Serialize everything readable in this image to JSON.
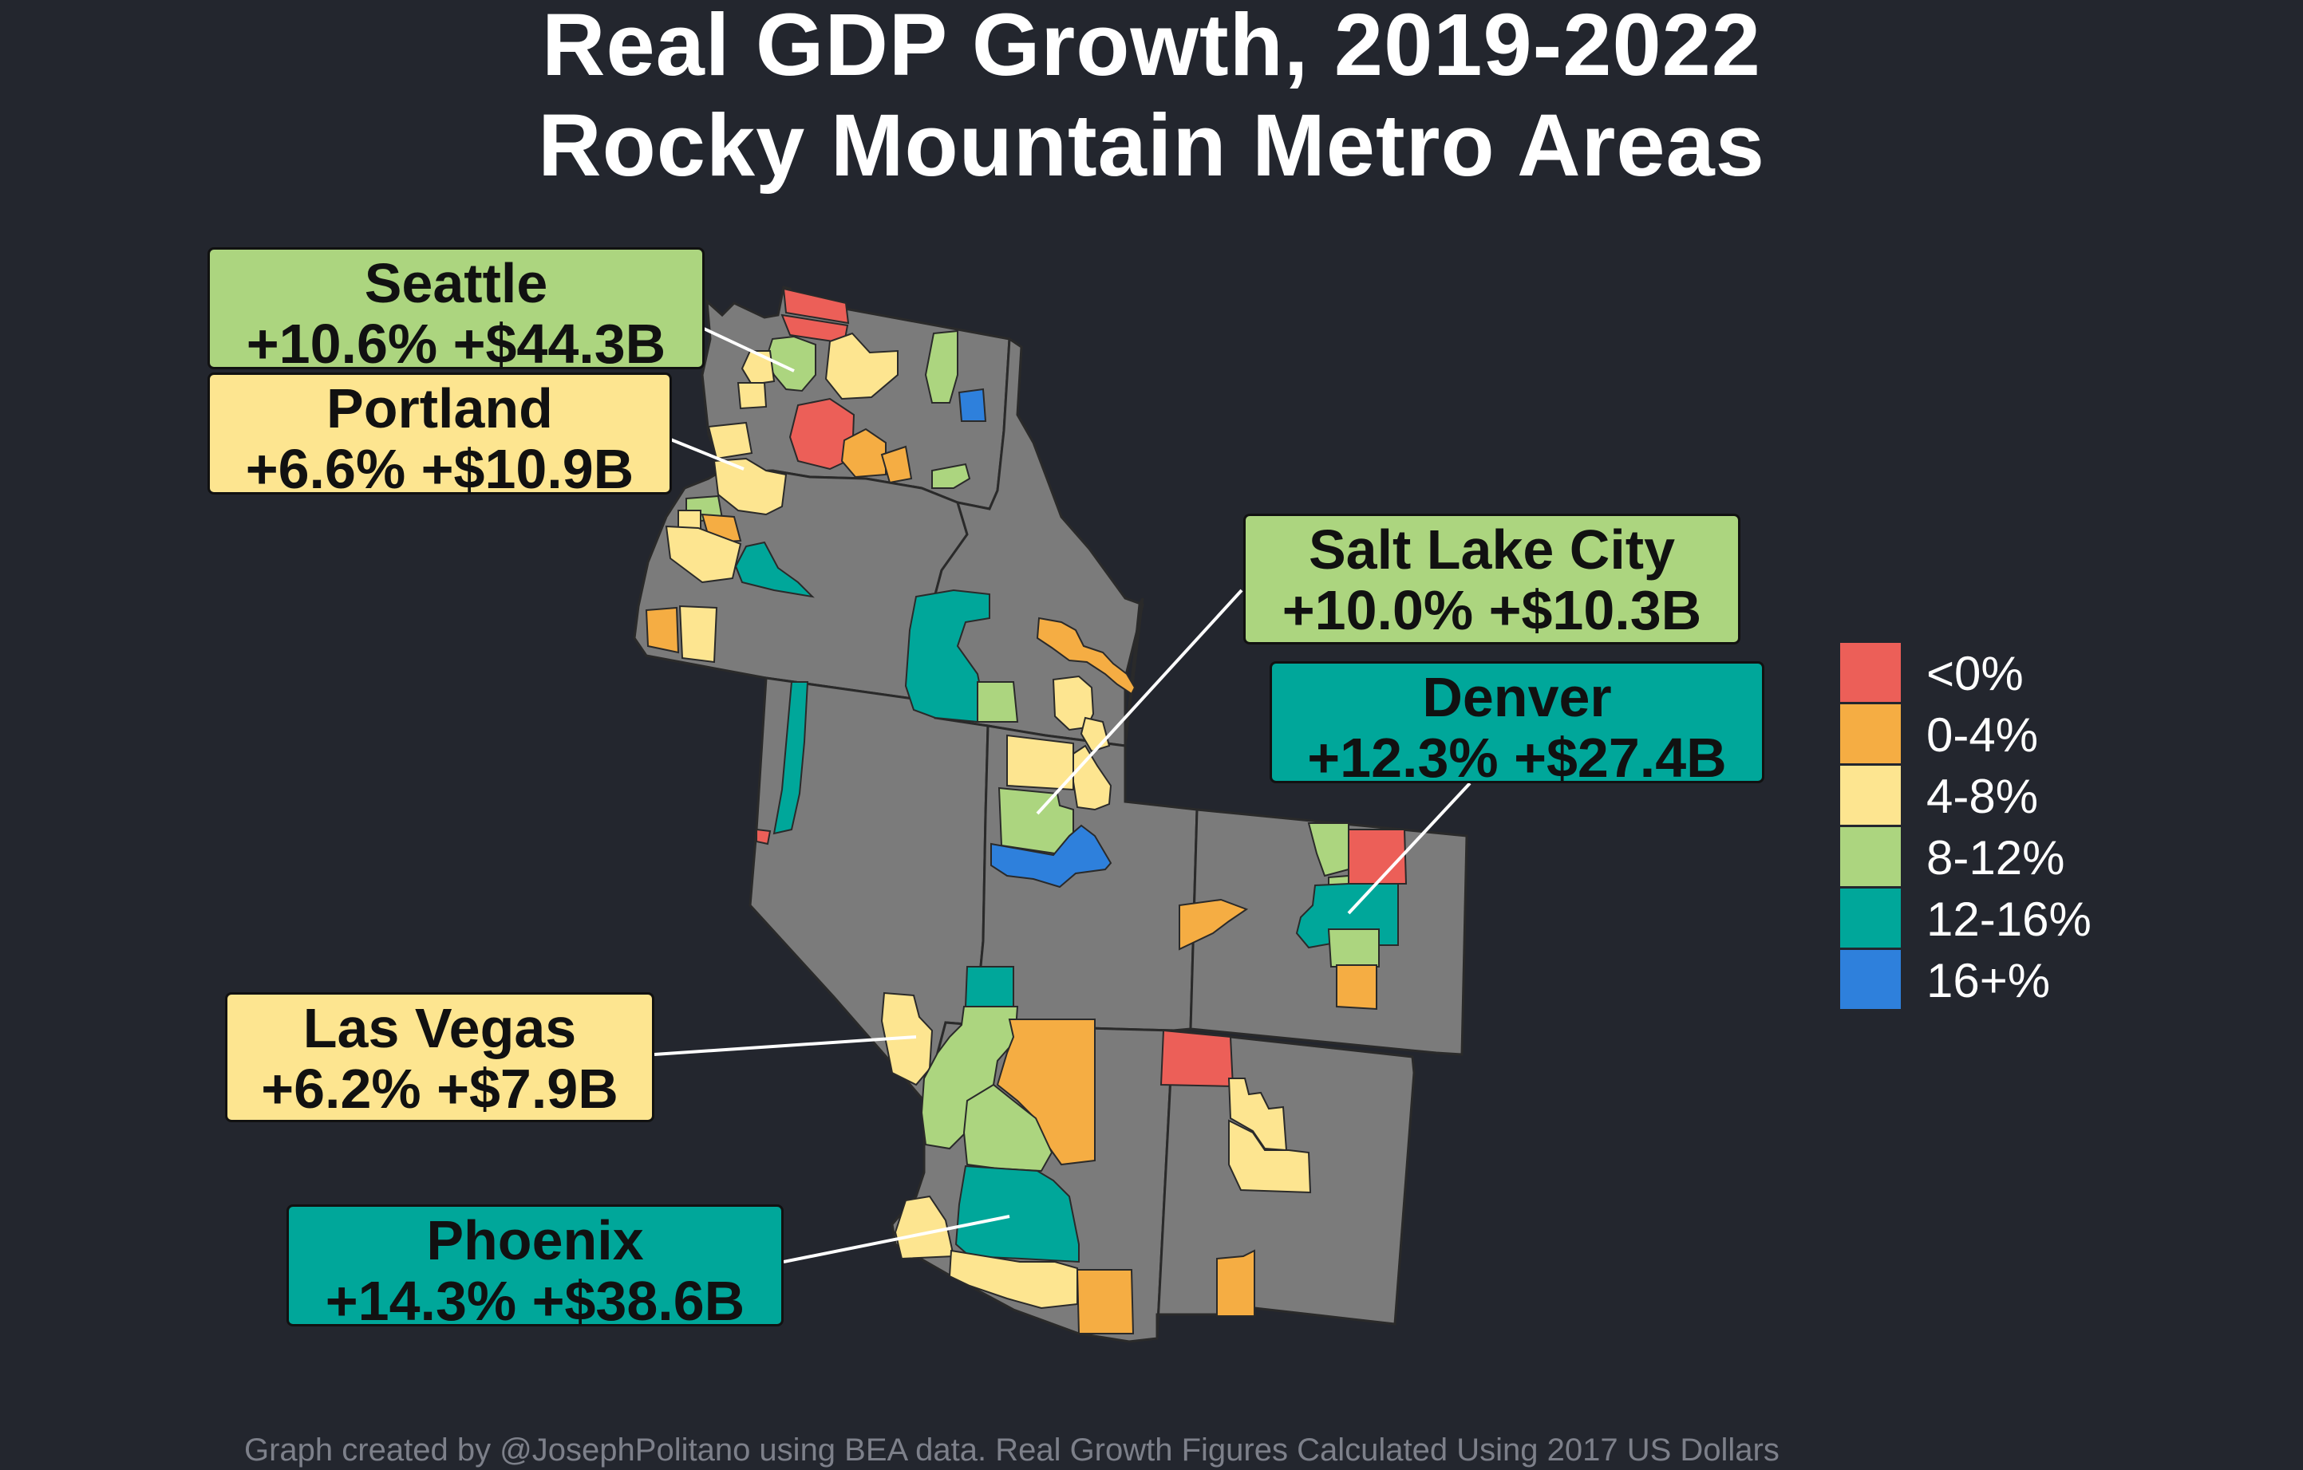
{
  "title": {
    "line1": "Real GDP Growth, 2019-2022",
    "line2": "Rocky Mountain Metro Areas"
  },
  "colors": {
    "background": "#23262e",
    "state": "#7b7b7b",
    "state_border": "#2a2a2a",
    "bins": {
      "lt0": "#ec5f58",
      "b0_4": "#f5ad43",
      "b4_8": "#fde590",
      "b8_12": "#acd57f",
      "b12_16": "#00a79a",
      "b16p": "#2e80dc"
    }
  },
  "legend": [
    {
      "label": "<0%",
      "color": "#ec5f58"
    },
    {
      "label": "0-4%",
      "color": "#f5ad43"
    },
    {
      "label": "4-8%",
      "color": "#fde590"
    },
    {
      "label": "8-12%",
      "color": "#acd57f"
    },
    {
      "label": "12-16%",
      "color": "#00a79a"
    },
    {
      "label": "16+%",
      "color": "#2e80dc"
    }
  ],
  "callouts": {
    "seattle": {
      "city": "Seattle",
      "stats": "+10.6%  +$44.3B",
      "color": "#acd57f"
    },
    "portland": {
      "city": "Portland",
      "stats": "+6.6%  +$10.9B",
      "color": "#fde590"
    },
    "salt_lake_city": {
      "city": "Salt Lake City",
      "stats": "+10.0%  +$10.3B",
      "color": "#acd57f"
    },
    "denver": {
      "city": "Denver",
      "stats": "+12.3%  +$27.4B",
      "color": "#00a79a"
    },
    "las_vegas": {
      "city": "Las Vegas",
      "stats": "+6.2%  +$7.9B",
      "color": "#fde590"
    },
    "phoenix": {
      "city": "Phoenix",
      "stats": "+14.3%  +$38.6B",
      "color": "#00a79a"
    }
  },
  "caption": "Graph created by @JosephPolitano using BEA data. Real Growth Figures Calculated Using 2017 US Dollars"
}
